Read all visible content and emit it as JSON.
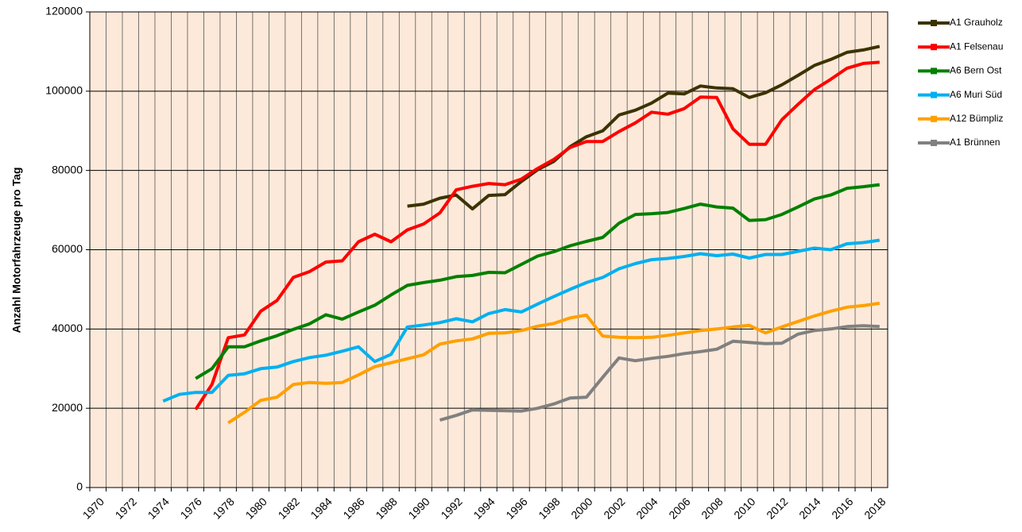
{
  "chart_data": {
    "type": "line",
    "y_label": "Anzahl Motorfahrzeuge pro Tag",
    "categories": [
      "1970",
      null,
      "1972",
      null,
      "1974",
      null,
      "1976",
      null,
      "1978",
      null,
      "1980",
      null,
      "1982",
      null,
      "1984",
      null,
      "1986",
      null,
      "1988",
      null,
      "1990",
      null,
      "1992",
      null,
      "1994",
      null,
      "1996",
      null,
      "1998",
      null,
      "2000",
      null,
      "2002",
      null,
      "2004",
      null,
      "2006",
      null,
      "2008",
      null,
      "2010",
      null,
      "2012",
      null,
      "2014",
      null,
      "2016",
      null,
      "2018"
    ],
    "ylim": [
      0,
      120000
    ],
    "yticks": [
      0,
      20000,
      40000,
      60000,
      80000,
      100000,
      120000
    ],
    "grid": true,
    "legend": "right",
    "series": [
      {
        "name": "A1 Grauholz",
        "color": "#3b3300",
        "values": [
          null,
          null,
          null,
          null,
          null,
          null,
          null,
          null,
          null,
          null,
          null,
          null,
          null,
          null,
          null,
          null,
          null,
          null,
          null,
          71000,
          71500,
          73000,
          73800,
          70300,
          73700,
          73900,
          77200,
          80200,
          82300,
          86000,
          88500,
          90000,
          94000,
          95200,
          97000,
          99500,
          99300,
          101300,
          100800,
          100600,
          98400,
          99600,
          101600,
          104000,
          106500,
          108000,
          109800,
          110400,
          111300
        ]
      },
      {
        "name": "A1 Felsenau",
        "color": "#ff0000",
        "values": [
          null,
          null,
          null,
          null,
          null,
          null,
          19700,
          26000,
          37800,
          38500,
          44500,
          47200,
          53000,
          54500,
          56900,
          57200,
          62000,
          63900,
          62000,
          65000,
          66500,
          69300,
          75100,
          76000,
          76700,
          76400,
          77800,
          80500,
          82800,
          85800,
          87300,
          87300,
          89800,
          92000,
          94700,
          94200,
          95600,
          98500,
          98400,
          90500,
          86600,
          86600,
          92800,
          96700,
          100400,
          103000,
          105800,
          107000,
          107300
        ]
      },
      {
        "name": "A6 Bern Ost",
        "color": "#008000",
        "values": [
          null,
          null,
          null,
          null,
          null,
          null,
          27500,
          30000,
          35500,
          35500,
          37000,
          38300,
          39900,
          41300,
          43600,
          42500,
          44300,
          46000,
          48600,
          51000,
          51700,
          52300,
          53200,
          53500,
          54300,
          54200,
          56300,
          58400,
          59500,
          61000,
          62100,
          63100,
          66700,
          68900,
          69100,
          69400,
          70400,
          71500,
          70800,
          70500,
          67400,
          67600,
          68900,
          70800,
          72800,
          73800,
          75500,
          75900,
          76400
        ]
      },
      {
        "name": "A6 Muri Süd",
        "color": "#00b0f0",
        "values": [
          null,
          null,
          null,
          null,
          21800,
          23500,
          24000,
          24000,
          28300,
          28700,
          30000,
          30400,
          31800,
          32800,
          33400,
          34400,
          35500,
          31800,
          33600,
          40500,
          41000,
          41600,
          42600,
          41800,
          43900,
          44900,
          44300,
          46300,
          48200,
          50000,
          51700,
          53000,
          55200,
          56500,
          57500,
          57800,
          58300,
          59000,
          58500,
          58900,
          57900,
          58800,
          58800,
          59600,
          60400,
          60000,
          61500,
          61800,
          62400
        ]
      },
      {
        "name": "A12 Bümpliz",
        "color": "#ffa000",
        "values": [
          null,
          null,
          null,
          null,
          null,
          null,
          null,
          null,
          16300,
          19000,
          22000,
          22800,
          26000,
          26500,
          26300,
          26500,
          28400,
          30500,
          31500,
          32500,
          33500,
          36200,
          37000,
          37500,
          38900,
          39000,
          39600,
          40700,
          41400,
          42800,
          43500,
          38200,
          37900,
          37800,
          37900,
          38400,
          39000,
          39600,
          40000,
          40500,
          40900,
          39000,
          40500,
          41900,
          43300,
          44500,
          45500,
          45900,
          46500
        ]
      },
      {
        "name": "A1 Brünnen",
        "color": "#808080",
        "values": [
          null,
          null,
          null,
          null,
          null,
          null,
          null,
          null,
          null,
          null,
          null,
          null,
          null,
          null,
          null,
          null,
          null,
          null,
          null,
          null,
          null,
          17000,
          18200,
          19600,
          19500,
          19400,
          19300,
          20000,
          21100,
          22600,
          22800,
          27800,
          32700,
          32000,
          32600,
          33100,
          33800,
          34300,
          34900,
          36900,
          36600,
          36300,
          36400,
          38700,
          39600,
          40000,
          40600,
          40800,
          40600
        ]
      }
    ]
  }
}
